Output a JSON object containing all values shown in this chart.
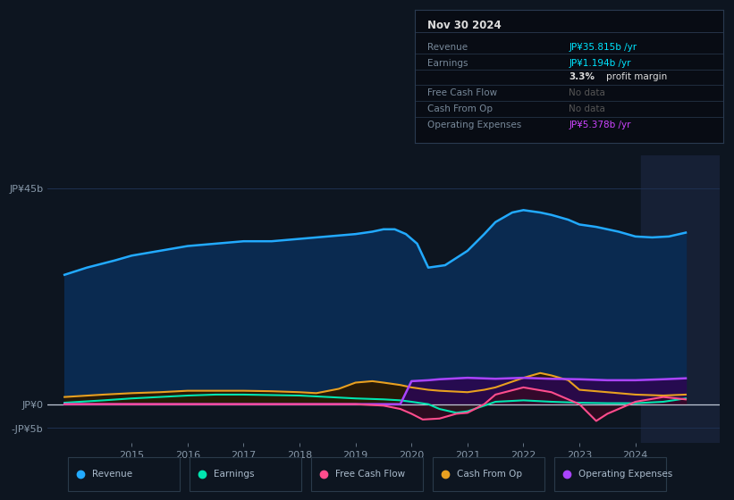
{
  "background_color": "#0d1520",
  "plot_bg_color": "#0d1520",
  "grid_color": "#1e3050",
  "yticks": [
    "JP¥45b",
    "JP¥0",
    "-JP¥5b"
  ],
  "ytick_values": [
    45,
    0,
    -5
  ],
  "ylim": [
    -8,
    52
  ],
  "xlim": [
    2013.5,
    2025.5
  ],
  "xticks": [
    2015,
    2016,
    2017,
    2018,
    2019,
    2020,
    2021,
    2022,
    2023,
    2024
  ],
  "shaded_region_start": 2024.1,
  "legend": [
    {
      "label": "Revenue",
      "color": "#22aaff"
    },
    {
      "label": "Earnings",
      "color": "#00e5b0"
    },
    {
      "label": "Free Cash Flow",
      "color": "#ff4d8d"
    },
    {
      "label": "Cash From Op",
      "color": "#e8a020"
    },
    {
      "label": "Operating Expenses",
      "color": "#aa44ff"
    }
  ],
  "revenue": {
    "x": [
      2013.8,
      2014.2,
      2014.7,
      2015.0,
      2015.5,
      2016.0,
      2016.5,
      2017.0,
      2017.5,
      2018.0,
      2018.3,
      2018.7,
      2019.0,
      2019.3,
      2019.5,
      2019.7,
      2019.9,
      2020.1,
      2020.3,
      2020.6,
      2021.0,
      2021.3,
      2021.5,
      2021.8,
      2022.0,
      2022.3,
      2022.5,
      2022.8,
      2023.0,
      2023.3,
      2023.7,
      2024.0,
      2024.3,
      2024.6,
      2024.9
    ],
    "y": [
      27,
      28.5,
      30,
      31,
      32,
      33,
      33.5,
      34,
      34,
      34.5,
      34.8,
      35.2,
      35.5,
      36,
      36.5,
      36.5,
      35.5,
      33.5,
      28.5,
      29,
      32,
      35.5,
      38,
      40,
      40.5,
      40,
      39.5,
      38.5,
      37.5,
      37,
      36,
      35,
      34.8,
      35,
      35.8
    ],
    "color": "#22aaff",
    "fill_color": "#0a2a50"
  },
  "earnings": {
    "x": [
      2013.8,
      2014.5,
      2015.0,
      2015.5,
      2016.0,
      2016.5,
      2017.0,
      2017.5,
      2018.0,
      2018.5,
      2019.0,
      2019.5,
      2019.8,
      2020.0,
      2020.3,
      2020.5,
      2020.8,
      2021.0,
      2021.5,
      2022.0,
      2022.5,
      2023.0,
      2023.5,
      2024.0,
      2024.5,
      2024.9
    ],
    "y": [
      0.3,
      0.8,
      1.2,
      1.5,
      1.8,
      2.0,
      2.0,
      1.9,
      1.8,
      1.5,
      1.2,
      1.0,
      0.8,
      0.5,
      0.0,
      -1.0,
      -1.8,
      -1.5,
      0.5,
      0.8,
      0.5,
      0.3,
      0.2,
      0.2,
      0.5,
      1.2
    ],
    "color": "#00e5b0",
    "fill_color": "#083a28"
  },
  "free_cash_flow": {
    "x": [
      2013.8,
      2018.5,
      2019.0,
      2019.5,
      2019.8,
      2020.0,
      2020.2,
      2020.5,
      2020.8,
      2021.0,
      2021.3,
      2021.5,
      2022.0,
      2022.5,
      2023.0,
      2023.3,
      2023.5,
      2024.0,
      2024.5,
      2024.9
    ],
    "y": [
      0,
      0,
      0,
      -0.3,
      -1.0,
      -2.0,
      -3.2,
      -3.0,
      -2.0,
      -1.8,
      0.0,
      2.0,
      3.5,
      2.5,
      0.0,
      -3.5,
      -2.0,
      0.5,
      1.5,
      1.0
    ],
    "color": "#ff4d8d",
    "fill_color": "#3a0820"
  },
  "cash_from_op": {
    "x": [
      2013.8,
      2014.5,
      2015.0,
      2015.5,
      2016.0,
      2016.5,
      2017.0,
      2017.5,
      2018.0,
      2018.3,
      2018.7,
      2019.0,
      2019.3,
      2019.5,
      2019.8,
      2020.0,
      2020.3,
      2020.5,
      2021.0,
      2021.3,
      2021.5,
      2022.0,
      2022.3,
      2022.5,
      2022.8,
      2023.0,
      2023.5,
      2024.0,
      2024.5,
      2024.9
    ],
    "y": [
      1.5,
      2.0,
      2.3,
      2.5,
      2.8,
      2.8,
      2.8,
      2.7,
      2.5,
      2.3,
      3.2,
      4.5,
      4.8,
      4.5,
      4.0,
      3.5,
      3.0,
      2.8,
      2.5,
      3.0,
      3.5,
      5.5,
      6.5,
      6.0,
      5.0,
      3.0,
      2.5,
      2.0,
      1.8,
      2.0
    ],
    "color": "#e8a020",
    "fill_color": "#2a1800"
  },
  "operating_expenses": {
    "x": [
      2013.8,
      2019.8,
      2020.0,
      2020.3,
      2020.5,
      2021.0,
      2021.5,
      2022.0,
      2022.5,
      2023.0,
      2023.5,
      2024.0,
      2024.5,
      2024.9
    ],
    "y": [
      0,
      0,
      4.8,
      5.0,
      5.2,
      5.5,
      5.3,
      5.5,
      5.3,
      5.2,
      5.0,
      5.0,
      5.2,
      5.4
    ],
    "color": "#aa44ff",
    "fill_color": "#2a0850"
  },
  "title_box": {
    "date": "Nov 30 2024",
    "rows": [
      {
        "label": "Revenue",
        "value": "JP¥35.815b /yr",
        "value_color": "#00e5ff"
      },
      {
        "label": "Earnings",
        "value": "JP¥1.194b /yr",
        "value_color": "#00e5ff"
      },
      {
        "label": "",
        "value": "3.3% profit margin",
        "bold_prefix": "3.3%"
      },
      {
        "label": "Free Cash Flow",
        "value": "No data",
        "value_color": "#555555"
      },
      {
        "label": "Cash From Op",
        "value": "No data",
        "value_color": "#555555"
      },
      {
        "label": "Operating Expenses",
        "value": "JP¥5.378b /yr",
        "value_color": "#cc44ff"
      }
    ]
  }
}
